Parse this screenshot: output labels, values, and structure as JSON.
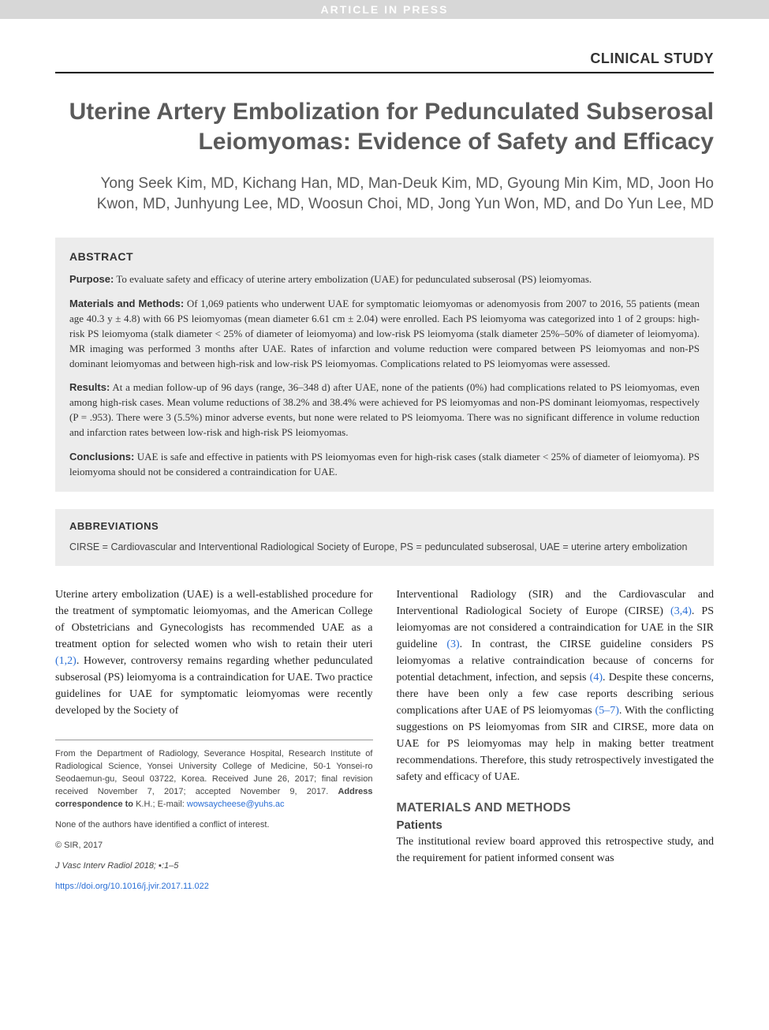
{
  "banner": "ARTICLE IN PRESS",
  "sectionType": "CLINICAL STUDY",
  "title": "Uterine Artery Embolization for Pedunculated Subserosal Leiomyomas: Evidence of Safety and Efficacy",
  "authors": "Yong Seek Kim, MD, Kichang Han, MD, Man-Deuk Kim, MD, Gyoung Min Kim, MD, Joon Ho Kwon, MD, Junhyung Lee, MD, Woosun Choi, MD, Jong Yun Won, MD, and Do Yun Lee, MD",
  "abstract": {
    "heading": "ABSTRACT",
    "items": [
      {
        "label": "Purpose:",
        "text": " To evaluate safety and efficacy of uterine artery embolization (UAE) for pedunculated subserosal (PS) leiomyomas."
      },
      {
        "label": "Materials and Methods:",
        "text": " Of 1,069 patients who underwent UAE for symptomatic leiomyomas or adenomyosis from 2007 to 2016, 55 patients (mean age 40.3 y ± 4.8) with 66 PS leiomyomas (mean diameter 6.61 cm ± 2.04) were enrolled. Each PS leiomyoma was categorized into 1 of 2 groups: high-risk PS leiomyoma (stalk diameter < 25% of diameter of leiomyoma) and low-risk PS leiomyoma (stalk diameter 25%–50% of diameter of leiomyoma). MR imaging was performed 3 months after UAE. Rates of infarction and volume reduction were compared between PS leiomyomas and non-PS dominant leiomyomas and between high-risk and low-risk PS leiomyomas. Complications related to PS leiomyomas were assessed."
      },
      {
        "label": "Results:",
        "text": " At a median follow-up of 96 days (range, 36–348 d) after UAE, none of the patients (0%) had complications related to PS leiomyomas, even among high-risk cases. Mean volume reductions of 38.2% and 38.4% were achieved for PS leiomyomas and non-PS dominant leiomyomas, respectively (P = .953). There were 3 (5.5%) minor adverse events, but none were related to PS leiomyoma. There was no significant difference in volume reduction and infarction rates between low-risk and high-risk PS leiomyomas."
      },
      {
        "label": "Conclusions:",
        "text": " UAE is safe and effective in patients with PS leiomyomas even for high-risk cases (stalk diameter < 25% of diameter of leiomyoma). PS leiomyoma should not be considered a contraindication for UAE."
      }
    ]
  },
  "abbreviations": {
    "heading": "ABBREVIATIONS",
    "text": "CIRSE = Cardiovascular and Interventional Radiological Society of Europe, PS = pedunculated subserosal, UAE = uterine artery embolization"
  },
  "body": {
    "leftPara1a": "Uterine artery embolization (UAE) is a well-established procedure for the treatment of symptomatic leiomyomas, and the American College of Obstetricians and Gynecologists has recommended UAE as a treatment option for selected women who wish to retain their uteri ",
    "leftRef1": "(1,2)",
    "leftPara1b": ". However, controversy remains regarding whether pedunculated subserosal (PS) leiomyoma is a contraindication for UAE. Two practice guidelines for UAE for symptomatic leiomyomas were recently developed by the Society of",
    "rightPara1a": "Interventional Radiology (SIR) and the Cardiovascular and Interventional Radiological Society of Europe (CIRSE) ",
    "rightRef1": "(3,4)",
    "rightPara1b": ". PS leiomyomas are not considered a contraindication for UAE in the SIR guideline ",
    "rightRef2": "(3)",
    "rightPara1c": ". In contrast, the CIRSE guideline considers PS leiomyomas a relative contraindication because of concerns for potential detachment, infection, and sepsis ",
    "rightRef3": "(4)",
    "rightPara1d": ". Despite these concerns, there have been only a few case reports describing serious complications after UAE of PS leiomyomas ",
    "rightRef4": "(5–7)",
    "rightPara1e": ". With the conflicting suggestions on PS leiomyomas from SIR and CIRSE, more data on UAE for PS leiomyomas may help in making better treatment recommendations. Therefore, this study retrospectively investigated the safety and efficacy of UAE."
  },
  "footnotes": {
    "affil1": "From the Department of Radiology, Severance Hospital, Research Institute of Radiological Science, Yonsei University College of Medicine, 50-1 Yonsei-ro Seodaemun-gu, Seoul 03722, Korea. Received June 26, 2017; final revision received November 7, 2017; accepted November 9, 2017. ",
    "affilBold": "Address correspondence to",
    "affil2": " K.H.; E-mail: ",
    "email": "wowsaycheese@yuhs.ac",
    "conflict": "None of the authors have identified a conflict of interest.",
    "copyright": "© SIR, 2017",
    "journal": "J Vasc Interv Radiol 2018; ▪:1–5",
    "doi": "https://doi.org/10.1016/j.jvir.2017.11.022"
  },
  "sections": {
    "materialsHeading": "MATERIALS AND METHODS",
    "patientsHeading": "Patients",
    "patientsText": "The institutional review board approved this retrospective study, and the requirement for patient informed consent was"
  },
  "colors": {
    "bannerBg": "#d7d7d7",
    "bannerText": "#ffffff",
    "titleColor": "#5a5a5a",
    "boxBg": "#ececec",
    "linkColor": "#2a6fd6",
    "bodyText": "#222222"
  }
}
